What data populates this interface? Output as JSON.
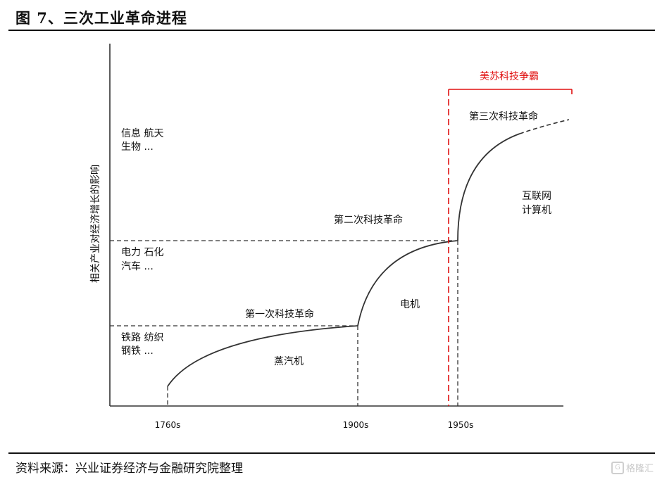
{
  "figure_title": "图 7、三次工业革命进程",
  "source": "资料来源：兴业证券经济与金融研究院整理",
  "watermark": "格隆汇",
  "colors": {
    "curve": "#333333",
    "dashed": "#333333",
    "highlight": "#e01010"
  },
  "chart_data": {
    "type": "line",
    "ylabel": "相关产业对经济增长的影响",
    "xlabel": "",
    "x_ticks": [
      "1760s",
      "1900s",
      "1950s"
    ],
    "axis_numbers_shown": false,
    "series": [
      {
        "name": "第一次科技革命",
        "label": "蒸汽机",
        "from": "1760s",
        "to": "1900s",
        "style": "solid"
      },
      {
        "name": "第二次科技革命",
        "label": "电机",
        "from": "1900s",
        "to": "1950s",
        "style": "solid"
      },
      {
        "name": "第三次科技革命",
        "label": "互联网 计算机",
        "from": "1950s",
        "to": "",
        "style": "solid-then-dashed"
      }
    ],
    "industry_levels": [
      {
        "line1": "铁路 纺织",
        "line2": "钢铁 ..."
      },
      {
        "line1": "电力 石化",
        "line2": "汽车 ..."
      },
      {
        "line1": "信息 航天",
        "line2": "生物 ..."
      }
    ],
    "annotations": [
      {
        "text": "美苏科技争霸",
        "color": "#e01010",
        "region_start": "1950s"
      }
    ],
    "grid": false
  }
}
